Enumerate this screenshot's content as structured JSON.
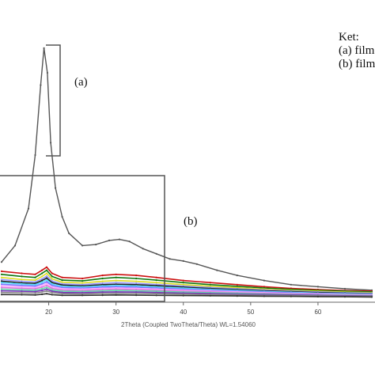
{
  "chart_data": {
    "type": "line",
    "xlabel": "2Theta (Coupled TwoTheta/Theta) WL=1.54060",
    "ylabel": "",
    "xlim": [
      13,
      68
    ],
    "x_ticks": [
      20,
      30,
      40,
      50,
      60
    ],
    "x_tick_labels": [
      "20",
      "30",
      "40",
      "50",
      "60"
    ],
    "grid": false,
    "legend_title": "Ket:",
    "legend_items": [
      "(a) film",
      "(b) film"
    ],
    "legend_placement": "top-right, cropped",
    "annotations": [
      "(a)",
      "(b)"
    ],
    "colors": {
      "pattern_a": "#555555",
      "series_b": [
        "#cc1111",
        "#117711",
        "#dddd22",
        "#9999ff",
        "#222222",
        "#55ddff",
        "#7777ff",
        "#ffaaff",
        "#dd77dd",
        "#66ddaa",
        "#7733bb",
        "#888888",
        "#333333"
      ],
      "box": "#555555"
    },
    "series": [
      {
        "group": "a",
        "x": [
          13,
          15,
          17,
          18,
          18.8,
          19.3,
          19.8,
          20.3,
          21,
          22,
          23,
          25,
          27,
          29,
          30.5,
          32,
          34,
          36,
          38,
          40,
          42,
          45,
          48,
          52,
          56,
          60,
          64,
          68
        ],
        "values": [
          18,
          26,
          44,
          70,
          104,
          122,
          110,
          76,
          54,
          40,
          32,
          26,
          26.5,
          28.5,
          29,
          28,
          24.5,
          22,
          19.5,
          18.5,
          17,
          14,
          11.5,
          9,
          7,
          6,
          5,
          4.3
        ]
      },
      {
        "group": "b",
        "x": [
          13,
          16,
          18,
          19,
          19.7,
          20.5,
          22,
          25,
          28,
          30,
          33,
          36,
          40,
          44,
          48,
          52,
          56,
          60,
          64,
          68
        ],
        "values": [
          13.5,
          12.5,
          12,
          14,
          15.5,
          12.5,
          10.5,
          10,
          11.5,
          12,
          11.5,
          10.5,
          9,
          8,
          7,
          6,
          5.2,
          4.6,
          4.1,
          3.8
        ]
      },
      {
        "group": "b",
        "x": [
          13,
          16,
          18,
          19,
          19.7,
          20.5,
          22,
          25,
          28,
          30,
          33,
          36,
          40,
          44,
          48,
          52,
          56,
          60,
          64,
          68
        ],
        "values": [
          12,
          11,
          10.5,
          12.5,
          14,
          11,
          9.2,
          8.8,
          10,
          10.5,
          10,
          9.2,
          8,
          7,
          6.2,
          5.4,
          4.7,
          4.2,
          3.8,
          3.5
        ]
      },
      {
        "group": "b",
        "x": [
          13,
          16,
          18,
          19,
          19.7,
          20.5,
          22,
          25,
          28,
          30,
          33,
          36,
          40,
          44,
          48,
          52,
          56,
          60,
          64,
          68
        ],
        "values": [
          10.5,
          9.5,
          9.2,
          11,
          12.5,
          9.8,
          8.2,
          7.8,
          8.6,
          9,
          8.6,
          8,
          7,
          6.2,
          5.5,
          4.8,
          4.2,
          3.8,
          3.4,
          3.1
        ]
      },
      {
        "group": "b",
        "x": [
          13,
          16,
          18,
          19,
          19.7,
          20.5,
          22,
          25,
          28,
          30,
          33,
          36,
          40,
          44,
          48,
          52,
          56,
          60,
          64,
          68
        ],
        "values": [
          9.5,
          8.6,
          8.3,
          9.8,
          11.2,
          8.8,
          7.4,
          7,
          7.7,
          8,
          7.7,
          7.1,
          6.3,
          5.6,
          5,
          4.4,
          3.9,
          3.5,
          3.1,
          2.9
        ]
      },
      {
        "group": "b",
        "x": [
          13,
          16,
          18,
          19,
          19.7,
          20.5,
          22,
          25,
          28,
          30,
          33,
          36,
          40,
          44,
          48,
          52,
          56,
          60,
          64,
          68
        ],
        "values": [
          8.7,
          7.9,
          7.6,
          9,
          10.2,
          8,
          6.8,
          6.4,
          7,
          7.2,
          7,
          6.5,
          5.8,
          5.1,
          4.6,
          4,
          3.6,
          3.2,
          2.9,
          2.7
        ]
      },
      {
        "group": "b",
        "x": [
          13,
          16,
          18,
          19,
          19.7,
          20.5,
          22,
          25,
          28,
          30,
          33,
          36,
          40,
          44,
          48,
          52,
          56,
          60,
          64,
          68
        ],
        "values": [
          8,
          7.3,
          7,
          8.2,
          9.3,
          7.3,
          6.2,
          5.9,
          6.4,
          6.6,
          6.4,
          5.9,
          5.3,
          4.7,
          4.2,
          3.7,
          3.3,
          2.9,
          2.6,
          2.5
        ]
      },
      {
        "group": "b",
        "x": [
          13,
          16,
          18,
          19,
          19.7,
          20.5,
          22,
          25,
          28,
          30,
          33,
          36,
          40,
          44,
          48,
          52,
          56,
          60,
          64,
          68
        ],
        "values": [
          7.2,
          6.6,
          6.3,
          7.4,
          8.4,
          6.6,
          5.6,
          5.3,
          5.8,
          6,
          5.8,
          5.4,
          4.8,
          4.3,
          3.8,
          3.4,
          3,
          2.7,
          2.4,
          2.3
        ]
      },
      {
        "group": "b",
        "x": [
          13,
          16,
          18,
          19,
          19.7,
          20.5,
          22,
          25,
          28,
          30,
          33,
          36,
          40,
          44,
          48,
          52,
          56,
          60,
          64,
          68
        ],
        "values": [
          6.4,
          5.9,
          5.6,
          6.6,
          7.5,
          5.9,
          5,
          4.8,
          5.2,
          5.4,
          5.2,
          4.8,
          4.3,
          3.9,
          3.5,
          3.1,
          2.7,
          2.5,
          2.2,
          2.1
        ]
      },
      {
        "group": "b",
        "x": [
          13,
          16,
          18,
          19,
          19.7,
          20.5,
          22,
          25,
          28,
          30,
          33,
          36,
          40,
          44,
          48,
          52,
          56,
          60,
          64,
          68
        ],
        "values": [
          5.6,
          5.2,
          5,
          5.8,
          6.6,
          5.2,
          4.4,
          4.2,
          4.6,
          4.8,
          4.6,
          4.3,
          3.9,
          3.5,
          3.1,
          2.8,
          2.5,
          2.3,
          2,
          1.9
        ]
      },
      {
        "group": "b",
        "x": [
          13,
          16,
          18,
          19,
          19.7,
          20.5,
          22,
          25,
          28,
          30,
          33,
          36,
          40,
          44,
          48,
          52,
          56,
          60,
          64,
          68
        ],
        "values": [
          4.8,
          4.5,
          4.3,
          5,
          5.7,
          4.5,
          3.8,
          3.7,
          4,
          4.2,
          4,
          3.8,
          3.4,
          3.1,
          2.8,
          2.5,
          2.2,
          2,
          1.8,
          1.7
        ]
      },
      {
        "group": "b",
        "x": [
          13,
          16,
          18,
          19,
          19.7,
          20.5,
          22,
          25,
          28,
          30,
          33,
          36,
          40,
          44,
          48,
          52,
          56,
          60,
          64,
          68
        ],
        "values": [
          4,
          3.8,
          3.6,
          4.2,
          4.8,
          3.8,
          3.2,
          3.1,
          3.4,
          3.5,
          3.4,
          3.2,
          2.9,
          2.7,
          2.4,
          2.2,
          2,
          1.8,
          1.6,
          1.5
        ]
      },
      {
        "group": "b",
        "x": [
          13,
          16,
          18,
          19,
          19.7,
          20.5,
          22,
          25,
          28,
          30,
          33,
          36,
          40,
          44,
          48,
          52,
          56,
          60,
          64,
          68
        ],
        "values": [
          3.2,
          3,
          2.9,
          3.4,
          3.9,
          3.1,
          2.6,
          2.5,
          2.7,
          2.8,
          2.7,
          2.6,
          2.4,
          2.2,
          2,
          1.8,
          1.7,
          1.5,
          1.4,
          1.3
        ]
      },
      {
        "group": "b",
        "x": [
          13,
          16,
          18,
          19,
          19.7,
          20.5,
          22,
          25,
          28,
          30,
          33,
          36,
          40,
          44,
          48,
          52,
          56,
          60,
          64,
          68
        ],
        "values": [
          2.2,
          2.1,
          2,
          2.3,
          2.6,
          2.1,
          1.8,
          1.8,
          1.9,
          2,
          1.9,
          1.8,
          1.7,
          1.6,
          1.5,
          1.4,
          1.3,
          1.2,
          1.1,
          1
        ]
      }
    ]
  }
}
